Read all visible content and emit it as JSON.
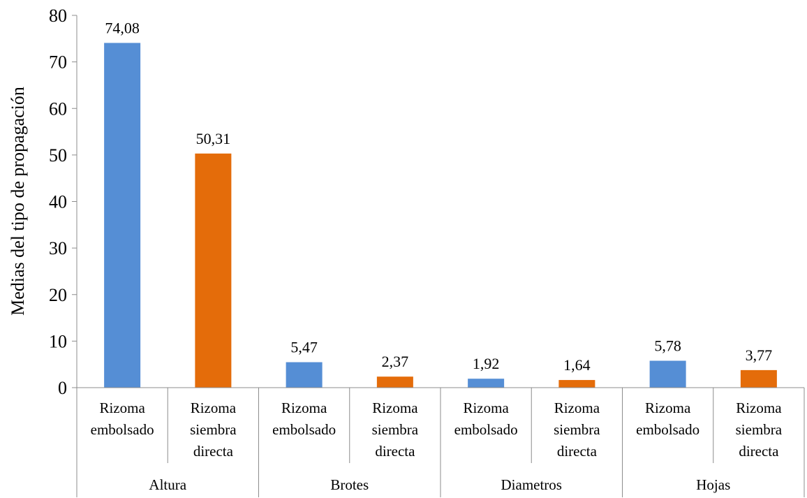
{
  "chart_data": {
    "type": "bar",
    "title": "",
    "xlabel": "",
    "ylabel": "Medias del tipo de propagación",
    "ylim": [
      0,
      80
    ],
    "yticks": [
      0,
      10,
      20,
      30,
      40,
      50,
      60,
      70,
      80
    ],
    "grid": false,
    "legend": "none",
    "groups": [
      {
        "label": "Altura",
        "bars": [
          {
            "category": [
              "Rizoma",
              "embolsado"
            ],
            "value": 74.08,
            "value_label": "74,08",
            "color": "#558ed5"
          },
          {
            "category": [
              "Rizoma",
              "siembra",
              "directa"
            ],
            "value": 50.31,
            "value_label": "50,31",
            "color": "#e46c0a"
          }
        ]
      },
      {
        "label": "Brotes",
        "bars": [
          {
            "category": [
              "Rizoma",
              "embolsado"
            ],
            "value": 5.47,
            "value_label": "5,47",
            "color": "#558ed5"
          },
          {
            "category": [
              "Rizoma",
              "siembra",
              "directa"
            ],
            "value": 2.37,
            "value_label": "2,37",
            "color": "#e46c0a"
          }
        ]
      },
      {
        "label": "Diametros",
        "bars": [
          {
            "category": [
              "Rizoma",
              "embolsado"
            ],
            "value": 1.92,
            "value_label": "1,92",
            "color": "#558ed5"
          },
          {
            "category": [
              "Rizoma",
              "siembra",
              "directa"
            ],
            "value": 1.64,
            "value_label": "1,64",
            "color": "#e46c0a"
          }
        ]
      },
      {
        "label": "Hojas",
        "bars": [
          {
            "category": [
              "Rizoma",
              "embolsado"
            ],
            "value": 5.78,
            "value_label": "5,78",
            "color": "#558ed5"
          },
          {
            "category": [
              "Rizoma",
              "siembra",
              "directa"
            ],
            "value": 3.77,
            "value_label": "3,77",
            "color": "#e46c0a"
          }
        ]
      }
    ]
  }
}
